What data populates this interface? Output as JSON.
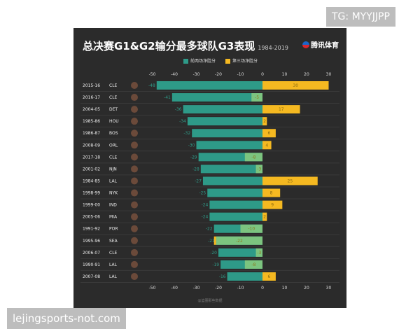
{
  "watermarks": {
    "top_right": "TG: MYYJJPP",
    "bottom_left": "lejingsports-not.com"
  },
  "colors": {
    "background": "#2b2b2b",
    "g12": "#2e9a88",
    "g3_positive": "#f5b921",
    "g3_negative": "#7cc47f"
  },
  "chart_data": {
    "type": "bar",
    "orientation": "horizontal",
    "title": "总决赛G1&G2输分最多球队G3表现",
    "subtitle": "1984-2019",
    "brand": "腾讯体育",
    "source": "@篮圈那些数据",
    "legend": [
      "前两场净胜分",
      "第三场净胜分"
    ],
    "legend_position": "top",
    "xlim": [
      -50,
      30
    ],
    "xticks": [
      -50,
      -40,
      -30,
      -20,
      -10,
      0,
      10,
      20,
      30
    ],
    "grid": false,
    "rows": [
      {
        "season": "2015-16",
        "team": "CLE",
        "g12": -48,
        "g3": 30
      },
      {
        "season": "2016-17",
        "team": "CLE",
        "g12": -41,
        "g3": -5
      },
      {
        "season": "2004-05",
        "team": "DET",
        "g12": -36,
        "g3": 17
      },
      {
        "season": "1985-86",
        "team": "HOU",
        "g12": -34,
        "g3": 2
      },
      {
        "season": "1986-87",
        "team": "BOS",
        "g12": -32,
        "g3": 6
      },
      {
        "season": "2008-09",
        "team": "ORL",
        "g12": -30,
        "g3": 4
      },
      {
        "season": "2017-18",
        "team": "CLE",
        "g12": -29,
        "g3": -8
      },
      {
        "season": "2001-02",
        "team": "NJN",
        "g12": -28,
        "g3": -3
      },
      {
        "season": "1984-85",
        "team": "LAL",
        "g12": -27,
        "g3": 25
      },
      {
        "season": "1998-99",
        "team": "NYK",
        "g12": -25,
        "g3": 8
      },
      {
        "season": "1999-00",
        "team": "IND",
        "g12": -24,
        "g3": 9
      },
      {
        "season": "2005-06",
        "team": "MIA",
        "g12": -24,
        "g3": 2
      },
      {
        "season": "1991-92",
        "team": "POR",
        "g12": -22,
        "g3": -10
      },
      {
        "season": "1995-96",
        "team": "SEA",
        "g12": -21,
        "g3": -22
      },
      {
        "season": "2006-07",
        "team": "CLE",
        "g12": -20,
        "g3": -3
      },
      {
        "season": "1990-91",
        "team": "LAL",
        "g12": -19,
        "g3": -8
      },
      {
        "season": "2007-08",
        "team": "LAL",
        "g12": -16,
        "g3": 6
      }
    ]
  }
}
